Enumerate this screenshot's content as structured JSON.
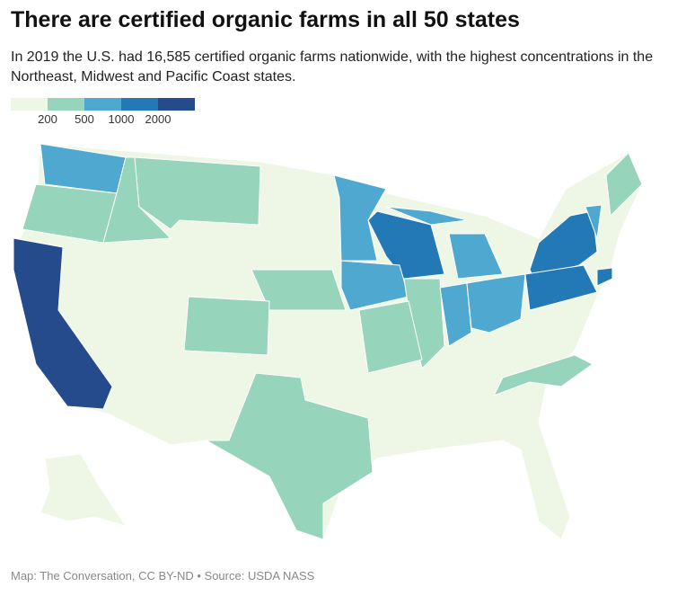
{
  "title": "There are certified organic farms in all 50 states",
  "subtitle": "In 2019 the U.S. had 16,585 certified organic farms nationwide, with the highest concentrations in the Northeast, Midwest and Pacific Coast states.",
  "legend": {
    "colors": [
      "#eef7e6",
      "#97d4bc",
      "#4fa8cf",
      "#2379b6",
      "#254b8c"
    ],
    "ticks": [
      200,
      500,
      1000,
      2000
    ]
  },
  "footer": "Map: The Conversation, CC BY-ND • Source: USDA NASS"
}
